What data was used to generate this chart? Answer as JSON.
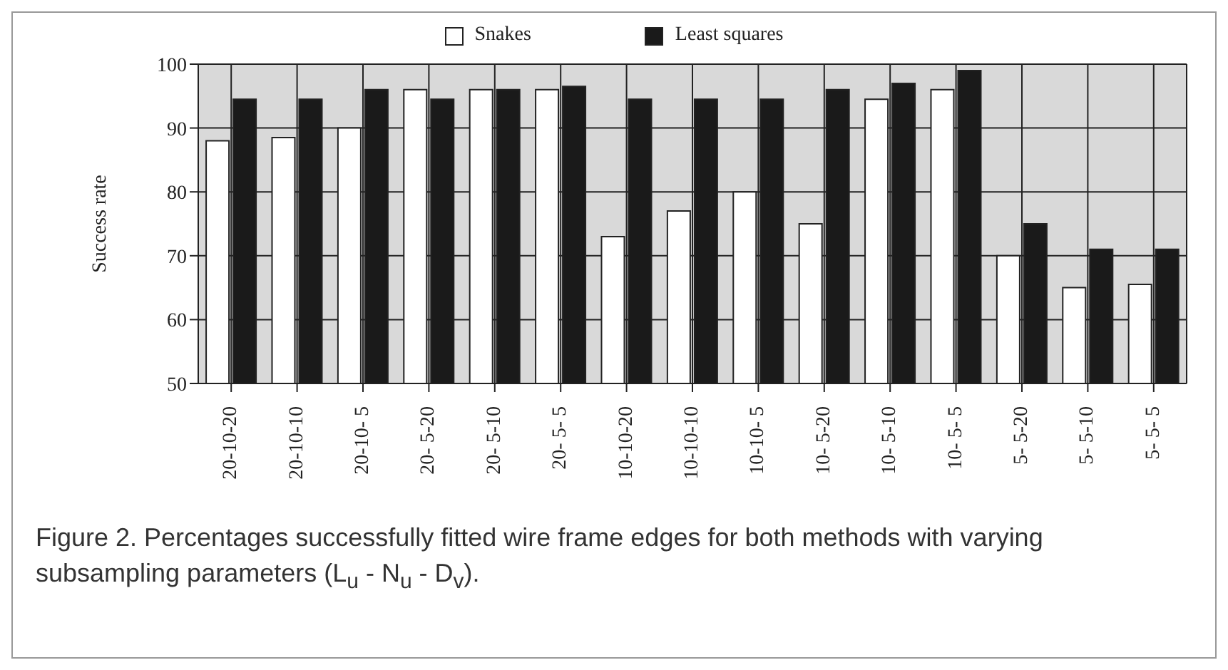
{
  "chart_data": {
    "type": "bar",
    "ylabel": "Success rate",
    "categories": [
      "20-10-20",
      "20-10-10",
      "20-10- 5",
      "20- 5-20",
      "20- 5-10",
      "20- 5- 5",
      "10-10-20",
      "10-10-10",
      "10-10- 5",
      "10- 5-20",
      "10- 5-10",
      "10- 5- 5",
      "5- 5-20",
      "5- 5-10",
      "5- 5- 5"
    ],
    "series": [
      {
        "name": "Snakes",
        "color": "#ffffff",
        "values": [
          88,
          88.5,
          90,
          96,
          96,
          96,
          73,
          77,
          80,
          75,
          94.5,
          96,
          70,
          65,
          65.5
        ]
      },
      {
        "name": "Least squares",
        "color": "#1a1a1a",
        "values": [
          94.5,
          94.5,
          96,
          94.5,
          96,
          96.5,
          94.5,
          94.5,
          94.5,
          96,
          97,
          99,
          75,
          71,
          71
        ]
      }
    ],
    "ylim": [
      50,
      100
    ],
    "yticks": [
      50,
      60,
      70,
      80,
      90,
      100
    ],
    "grid": true,
    "legend": "top",
    "annotations": [
      "Figure 2.  Percentages successfully fitted wire frame edges for both methods with varying subsampling parameters (L$_{u}$ - N$_{u}$ - D$_{v}$)."
    ]
  }
}
